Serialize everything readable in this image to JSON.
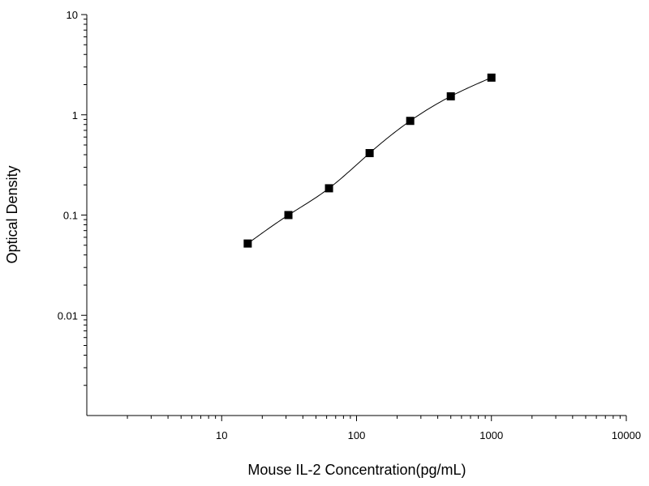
{
  "chart_data": {
    "type": "scatter",
    "title": "",
    "xlabel": "Mouse IL-2 Concentration(pg/mL)",
    "ylabel": "Optical Density",
    "xscale": "log",
    "yscale": "log",
    "xlim": [
      1,
      10000
    ],
    "ylim": [
      0.001,
      10
    ],
    "xticks": [
      {
        "value": 10,
        "label": "10"
      },
      {
        "value": 100,
        "label": "100"
      },
      {
        "value": 1000,
        "label": "1000"
      },
      {
        "value": 10000,
        "label": "10000"
      }
    ],
    "yticks": [
      {
        "value": 0.01,
        "label": "0.01"
      },
      {
        "value": 0.1,
        "label": "0.1"
      },
      {
        "value": 1,
        "label": "1"
      },
      {
        "value": 10,
        "label": "10"
      }
    ],
    "grid": false,
    "legend": "none",
    "series": [
      {
        "x": [
          15.6,
          31.25,
          62.5,
          125,
          250,
          500,
          1000
        ],
        "y": [
          0.052,
          0.1,
          0.185,
          0.415,
          0.87,
          1.53,
          2.35
        ],
        "marker": "square",
        "color": "#000000",
        "fit_line": true
      }
    ]
  }
}
